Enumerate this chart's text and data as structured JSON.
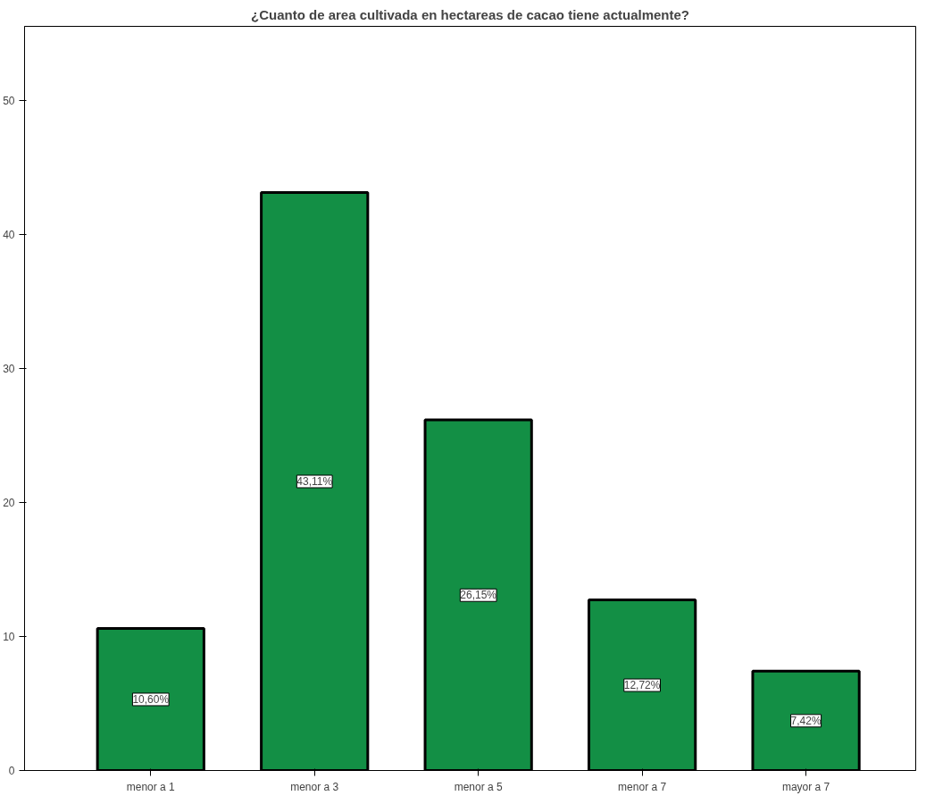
{
  "chart_data": {
    "type": "bar",
    "title": "¿Cuanto de area cultivada en hectareas de cacao tiene actualmente?",
    "categories": [
      "menor a 1",
      "menor a 3",
      "menor a 5",
      "menor a 7",
      "mayor a 7"
    ],
    "values": [
      10.6,
      43.11,
      26.15,
      12.72,
      7.42
    ],
    "value_labels": [
      "10,60%",
      "43,11%",
      "26,15%",
      "12,72%",
      "7,42%"
    ],
    "color": "#138f45",
    "ylim": [
      0,
      55.5
    ],
    "yticks": [
      0,
      10,
      20,
      30,
      40,
      50
    ],
    "grid": false
  }
}
